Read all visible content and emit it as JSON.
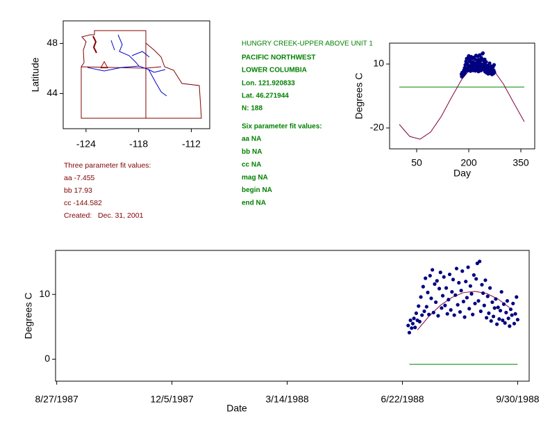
{
  "info": {
    "site": "HUNGRY CREEK-UPPER ABOVE UNIT 1",
    "region": "PACIFIC NORTHWEST",
    "basin": "LOWER COLUMBIA",
    "lon": "Lon. 121.920833",
    "lat": "Lat. 46.271944",
    "n": "N: 188",
    "six_title": "Six parameter fit values:",
    "six": [
      "aa NA",
      "bb NA",
      "cc NA",
      "mag NA",
      "begin NA",
      "end NA"
    ],
    "three_title": "Three parameter fit values:",
    "three": [
      "aa -7.455",
      "bb 17.93",
      "cc -144.582"
    ],
    "created": "Created:   Dec. 31, 2001"
  },
  "chart_data": [
    {
      "type": "map",
      "ylabel": "Latitude",
      "xlim": [
        -126.6,
        -109.9
      ],
      "ylim": [
        41.2,
        49.8
      ],
      "xticks": [
        -124,
        -118,
        -112
      ],
      "yticks": [
        44,
        48
      ],
      "site": {
        "x": -121.920833,
        "y": 46.271944,
        "color": "#a00000"
      }
    },
    {
      "type": "scatter",
      "xlabel": "Day",
      "ylabel": "Degrees C",
      "xlim": [
        -28,
        390
      ],
      "ylim": [
        -29.8,
        19.8
      ],
      "xticks": [
        50,
        200,
        350
      ],
      "yticks": [
        -20,
        10
      ],
      "series": [
        {
          "mode": "line",
          "color": "#008000",
          "x": [
            0,
            360
          ],
          "values": [
            -0.8,
            -0.8
          ]
        },
        {
          "mode": "line",
          "color": "#800040",
          "x": [
            0,
            30,
            60,
            90,
            120,
            150,
            180,
            210,
            240,
            270,
            300,
            330,
            360
          ],
          "values": [
            -18.34,
            -23.97,
            -25.26,
            -21.93,
            -14.81,
            -5.78,
            2.82,
            8.73,
            10.43,
            7.46,
            0.59,
            -8.36,
            -17.08
          ]
        },
        {
          "mode": "markers",
          "color": "#000080",
          "x": [
            179,
            180,
            181,
            182,
            183,
            184,
            185,
            186,
            187,
            188,
            189,
            190,
            191,
            192,
            193,
            194,
            195,
            196,
            197,
            198,
            199,
            200,
            201,
            202,
            203,
            204,
            205,
            206,
            207,
            208,
            209,
            210,
            211,
            212,
            213,
            214,
            215,
            216,
            217,
            218,
            219,
            220,
            221,
            222,
            223,
            224,
            225,
            226,
            227,
            228,
            229,
            230,
            231,
            232,
            233,
            234,
            235,
            236,
            237,
            238,
            239,
            240,
            241,
            242,
            243,
            244,
            245,
            246,
            247,
            248,
            249,
            250,
            251,
            252,
            253,
            254,
            255,
            256,
            257,
            258,
            259,
            260,
            261,
            262,
            263,
            264,
            265,
            266,
            267,
            268,
            269,
            270,
            271,
            272,
            273,
            274
          ],
          "values": [
            5.2,
            4.1,
            6.0,
            4.8,
            5.5,
            6.3,
            4.9,
            7.1,
            6.0,
            8.2,
            5.8,
            9.6,
            6.8,
            11.2,
            7.4,
            12.5,
            8.1,
            10.3,
            6.9,
            12.9,
            9.4,
            13.8,
            7.2,
            11.6,
            8.8,
            12.1,
            6.7,
            10.9,
            13.4,
            7.9,
            9.8,
            12.7,
            8.3,
            11.0,
            7.0,
            9.2,
            13.1,
            7.6,
            10.4,
            12.3,
            6.8,
            9.9,
            14.0,
            8.4,
            11.8,
            7.3,
            10.6,
            13.6,
            8.9,
            6.5,
            12.0,
            9.5,
            14.2,
            7.8,
            11.3,
            10.1,
            6.9,
            13.0,
            8.6,
            12.4,
            14.8,
            9.0,
            15.1,
            7.4,
            11.5,
            10.2,
            8.3,
            12.2,
            6.4,
            9.7,
            7.1,
            11.0,
            5.9,
            8.8,
            6.6,
            7.9,
            9.3,
            5.4,
            8.0,
            6.2,
            7.5,
            10.4,
            6.0,
            8.5,
            5.6,
            7.2,
            9.0,
            6.3,
            5.1,
            7.7,
            6.8,
            8.6,
            5.5,
            7.0,
            9.6,
            6.1
          ]
        }
      ]
    },
    {
      "type": "scatter",
      "xlabel": "Date",
      "ylabel": "Degrees C",
      "xlim": [
        "1987-08-26",
        "1988-10-10"
      ],
      "ylim": [
        -3.4,
        16.8
      ],
      "xticks": [
        {
          "value": "1987-08-27",
          "label": "8/27/1987"
        },
        {
          "value": "1987-12-05",
          "label": "12/5/1987"
        },
        {
          "value": "1988-03-14",
          "label": "3/14/1988"
        },
        {
          "value": "1988-06-22",
          "label": "6/22/1988"
        },
        {
          "value": "1988-09-30",
          "label": "9/30/1988"
        }
      ],
      "yticks": [
        0,
        10
      ],
      "series": [
        {
          "mode": "line",
          "color": "#008000",
          "x": [
            "1988-06-28",
            "1988-09-30"
          ],
          "values": [
            -0.8,
            -0.8
          ]
        },
        {
          "mode": "line",
          "color": "#800040",
          "x": [
            "1988-07-05",
            "1988-07-15",
            "1988-07-25",
            "1988-08-04",
            "1988-08-14",
            "1988-08-24",
            "1988-09-03",
            "1988-09-13",
            "1988-09-23"
          ],
          "values": [
            4.5,
            6.62,
            8.32,
            9.54,
            10.28,
            10.47,
            10.15,
            9.29,
            7.95
          ]
        },
        {
          "mode": "markers",
          "color": "#000080",
          "x": [
            "1988-06-27",
            "1988-06-28",
            "1988-06-29",
            "1988-06-30",
            "1988-07-01",
            "1988-07-02",
            "1988-07-03",
            "1988-07-04",
            "1988-07-05",
            "1988-07-06",
            "1988-07-07",
            "1988-07-08",
            "1988-07-09",
            "1988-07-10",
            "1988-07-11",
            "1988-07-12",
            "1988-07-13",
            "1988-07-14",
            "1988-07-15",
            "1988-07-16",
            "1988-07-17",
            "1988-07-18",
            "1988-07-19",
            "1988-07-20",
            "1988-07-21",
            "1988-07-22",
            "1988-07-23",
            "1988-07-24",
            "1988-07-25",
            "1988-07-26",
            "1988-07-27",
            "1988-07-28",
            "1988-07-29",
            "1988-07-30",
            "1988-07-31",
            "1988-08-01",
            "1988-08-02",
            "1988-08-03",
            "1988-08-04",
            "1988-08-05",
            "1988-08-06",
            "1988-08-07",
            "1988-08-08",
            "1988-08-09",
            "1988-08-10",
            "1988-08-11",
            "1988-08-12",
            "1988-08-13",
            "1988-08-14",
            "1988-08-15",
            "1988-08-16",
            "1988-08-17",
            "1988-08-18",
            "1988-08-19",
            "1988-08-20",
            "1988-08-21",
            "1988-08-22",
            "1988-08-23",
            "1988-08-24",
            "1988-08-25",
            "1988-08-26",
            "1988-08-27",
            "1988-08-28",
            "1988-08-29",
            "1988-08-30",
            "1988-08-31",
            "1988-09-01",
            "1988-09-02",
            "1988-09-03",
            "1988-09-04",
            "1988-09-05",
            "1988-09-06",
            "1988-09-07",
            "1988-09-08",
            "1988-09-09",
            "1988-09-10",
            "1988-09-11",
            "1988-09-12",
            "1988-09-13",
            "1988-09-14",
            "1988-09-15",
            "1988-09-16",
            "1988-09-17",
            "1988-09-18",
            "1988-09-19",
            "1988-09-20",
            "1988-09-21",
            "1988-09-22",
            "1988-09-23",
            "1988-09-24",
            "1988-09-25",
            "1988-09-26",
            "1988-09-27",
            "1988-09-28",
            "1988-09-29",
            "1988-09-30"
          ],
          "values": [
            5.2,
            4.1,
            6.0,
            4.8,
            5.5,
            6.3,
            4.9,
            7.1,
            6.0,
            8.2,
            5.8,
            9.6,
            6.8,
            11.2,
            7.4,
            12.5,
            8.1,
            10.3,
            6.9,
            12.9,
            9.4,
            13.8,
            7.2,
            11.6,
            8.8,
            12.1,
            6.7,
            10.9,
            13.4,
            7.9,
            9.8,
            12.7,
            8.3,
            11.0,
            7.0,
            9.2,
            13.1,
            7.6,
            10.4,
            12.3,
            6.8,
            9.9,
            14.0,
            8.4,
            11.8,
            7.3,
            10.6,
            13.6,
            8.9,
            6.5,
            12.0,
            9.5,
            14.2,
            7.8,
            11.3,
            10.1,
            6.9,
            13.0,
            8.6,
            12.4,
            14.8,
            9.0,
            15.1,
            7.4,
            11.5,
            10.2,
            8.3,
            12.2,
            6.4,
            9.7,
            7.1,
            11.0,
            5.9,
            8.8,
            6.6,
            7.9,
            9.3,
            5.4,
            8.0,
            6.2,
            7.5,
            10.4,
            6.0,
            8.5,
            5.6,
            7.2,
            9.0,
            6.3,
            5.1,
            7.7,
            6.8,
            8.6,
            5.5,
            7.0,
            9.6,
            6.1
          ]
        }
      ]
    }
  ]
}
